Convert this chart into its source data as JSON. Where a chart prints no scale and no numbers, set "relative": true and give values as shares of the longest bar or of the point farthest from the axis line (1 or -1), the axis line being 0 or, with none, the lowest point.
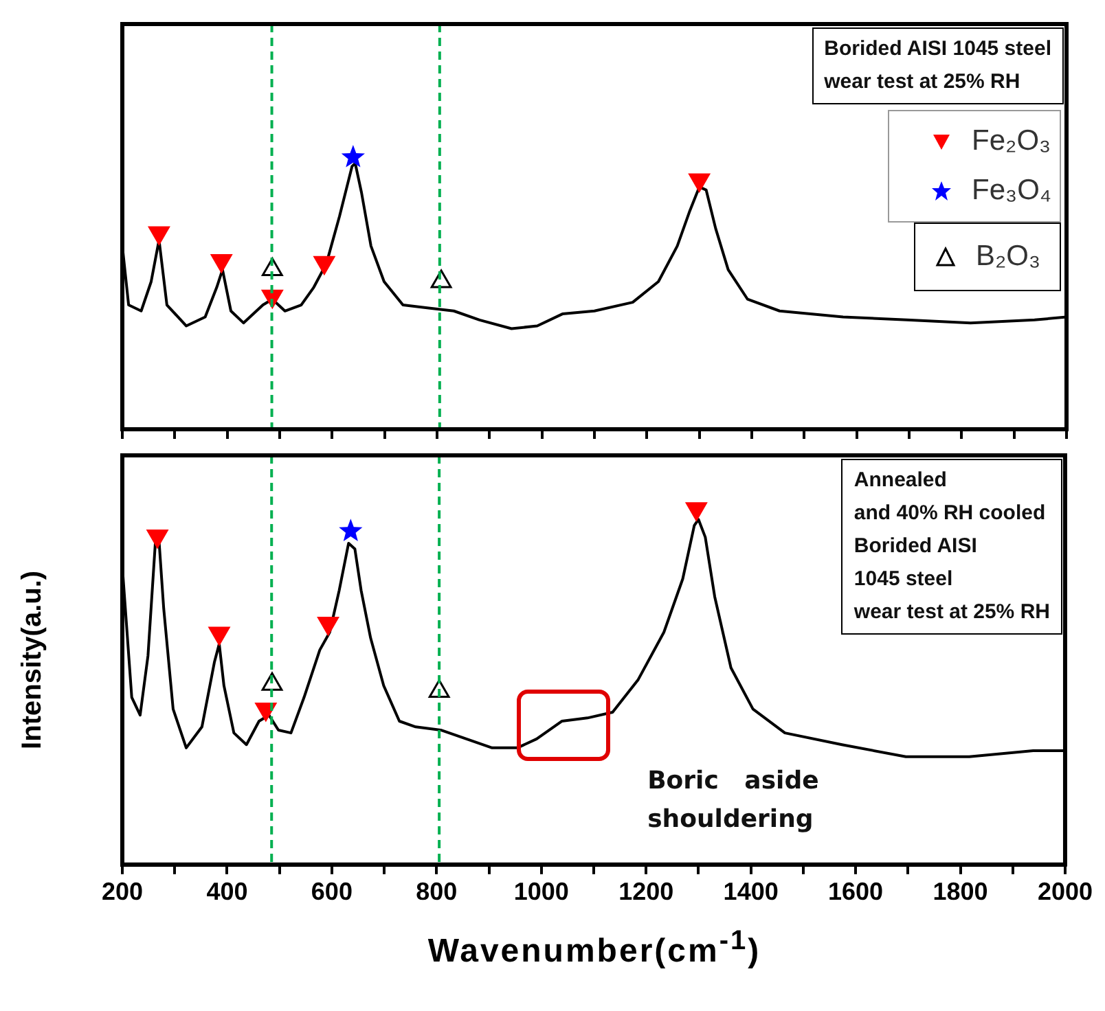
{
  "chart_data": [
    {
      "type": "line",
      "relative": true,
      "legend": "top right",
      "tick_labels": false,
      "xlim": [
        200,
        2000
      ],
      "xticks": [
        200,
        {
          "value": 300,
          "label": null
        },
        400,
        {
          "value": 500,
          "label": null
        },
        600,
        {
          "value": 700,
          "label": null
        },
        800,
        {
          "value": 900,
          "label": null
        },
        1000,
        {
          "value": 1100,
          "label": null
        },
        1200,
        {
          "value": 1300,
          "label": null
        },
        1400,
        {
          "value": 1500,
          "label": null
        },
        1600,
        {
          "value": 1700,
          "label": null
        },
        1800,
        {
          "value": 1900,
          "label": null
        },
        2000
      ],
      "annotations": [
        "Borided AISI 1045 steel\nwear test at 25%  RH"
      ],
      "ref_lines": [
        {
          "axis": "x",
          "value": 485,
          "color": "#00b050",
          "line_style": "dashed"
        },
        {
          "axis": "x",
          "value": 805,
          "color": "#00b050",
          "line_style": "dashed"
        }
      ],
      "series": [
        {
          "color": "#000000",
          "marker": "none",
          "line_style": "solid",
          "x": [
            200,
            212,
            236,
            255,
            270,
            285,
            322,
            358,
            380,
            391,
            407,
            431,
            468,
            486,
            510,
            541,
            565,
            589,
            614,
            638,
            644,
            656,
            674,
            699,
            735,
            784,
            832,
            881,
            942,
            991,
            1039,
            1100,
            1173,
            1222,
            1258,
            1282,
            1300,
            1313,
            1331,
            1355,
            1392,
            1453,
            1574,
            1696,
            1817,
            1939,
            2000
          ],
          "values": [
            0.674,
            0.457,
            0.435,
            0.543,
            0.696,
            0.457,
            0.38,
            0.413,
            0.522,
            0.587,
            0.435,
            0.391,
            0.457,
            0.478,
            0.435,
            0.457,
            0.522,
            0.609,
            0.783,
            0.967,
            0.978,
            0.87,
            0.674,
            0.543,
            0.457,
            0.446,
            0.435,
            0.402,
            0.37,
            0.38,
            0.424,
            0.435,
            0.467,
            0.543,
            0.674,
            0.804,
            0.891,
            0.88,
            0.739,
            0.587,
            0.478,
            0.435,
            0.413,
            0.402,
            0.391,
            0.402,
            0.413
          ]
        },
        {
          "type": "scatter",
          "name": "Fe₂O₃",
          "color": "#ff0000",
          "marker": "triangle",
          "x": [
            270,
            389,
            486,
            585,
            1300
          ],
          "values": [
            0.722,
            0.62,
            0.489,
            0.613,
            0.917
          ]
        },
        {
          "type": "scatter",
          "name": "Fe₃O₄",
          "color": "#0000ff",
          "marker": "star",
          "x": [
            640
          ],
          "values": [
            1.0
          ]
        },
        {
          "type": "scatter",
          "name": "B₂O₃",
          "color": "#000000",
          "marker": "triangle",
          "x": [
            486,
            808
          ],
          "values": [
            0.587,
            0.543
          ]
        }
      ]
    },
    {
      "type": "line",
      "relative": true,
      "tick_labels": "x",
      "ylabel": "Intensity(a.u.)",
      "xlabel": "Wavenumber(cm$^{-1}$)",
      "xlim": [
        200,
        2000
      ],
      "xticks": [
        200,
        {
          "value": 300,
          "label": null
        },
        400,
        {
          "value": 500,
          "label": null
        },
        600,
        {
          "value": 700,
          "label": null
        },
        800,
        {
          "value": 900,
          "label": null
        },
        1000,
        {
          "value": 1100,
          "label": null
        },
        1200,
        {
          "value": 1300,
          "label": null
        },
        1400,
        {
          "value": 1500,
          "label": null
        },
        1600,
        {
          "value": 1700,
          "label": null
        },
        1800,
        {
          "value": 1900,
          "label": null
        },
        2000
      ],
      "annotations": [
        "Annealed\nand 40%  RH cooled\nBorided AISI\n1045  steel\nwear test at 25%  RH",
        "Boric   aside\nshouldering"
      ],
      "ref_lines": [
        {
          "axis": "x",
          "value": 485,
          "color": "#00b050",
          "line_style": "dashed"
        },
        {
          "axis": "x",
          "value": 805,
          "color": "#00b050",
          "line_style": "dashed"
        }
      ],
      "series": [
        {
          "color": "#000000",
          "marker": "none",
          "line_style": "solid",
          "x": [
            200,
            218,
            234,
            249,
            263,
            270,
            279,
            297,
            322,
            352,
            376,
            385,
            394,
            413,
            437,
            461,
            480,
            498,
            522,
            547,
            577,
            596,
            614,
            632,
            644,
            656,
            674,
            699,
            729,
            760,
            808,
            857,
            906,
            954,
            991,
            1039,
            1088,
            1136,
            1185,
            1234,
            1270,
            1292,
            1300,
            1313,
            1331,
            1362,
            1404,
            1465,
            1574,
            1696,
            1817,
            1939,
            2000
          ],
          "values": [
            0.837,
            0.47,
            0.42,
            0.587,
            0.903,
            0.912,
            0.72,
            0.437,
            0.328,
            0.387,
            0.57,
            0.62,
            0.503,
            0.37,
            0.337,
            0.403,
            0.42,
            0.378,
            0.37,
            0.47,
            0.603,
            0.653,
            0.77,
            0.903,
            0.887,
            0.77,
            0.637,
            0.503,
            0.403,
            0.387,
            0.378,
            0.353,
            0.328,
            0.328,
            0.353,
            0.403,
            0.412,
            0.428,
            0.52,
            0.653,
            0.803,
            0.953,
            0.97,
            0.92,
            0.753,
            0.553,
            0.437,
            0.37,
            0.337,
            0.303,
            0.303,
            0.32,
            0.32
          ]
        },
        {
          "type": "scatter",
          "color": "#ff0000",
          "marker": "triangle",
          "x": [
            267,
            385,
            474,
            593,
            1296
          ],
          "values": [
            0.923,
            0.65,
            0.437,
            0.678,
            1.0
          ]
        },
        {
          "type": "scatter",
          "color": "#0000ff",
          "marker": "star",
          "x": [
            636
          ],
          "values": [
            0.937
          ]
        },
        {
          "type": "scatter",
          "color": "#000000",
          "marker": "triangle",
          "x": [
            486,
            805
          ],
          "values": [
            0.507,
            0.487
          ]
        }
      ]
    }
  ]
}
